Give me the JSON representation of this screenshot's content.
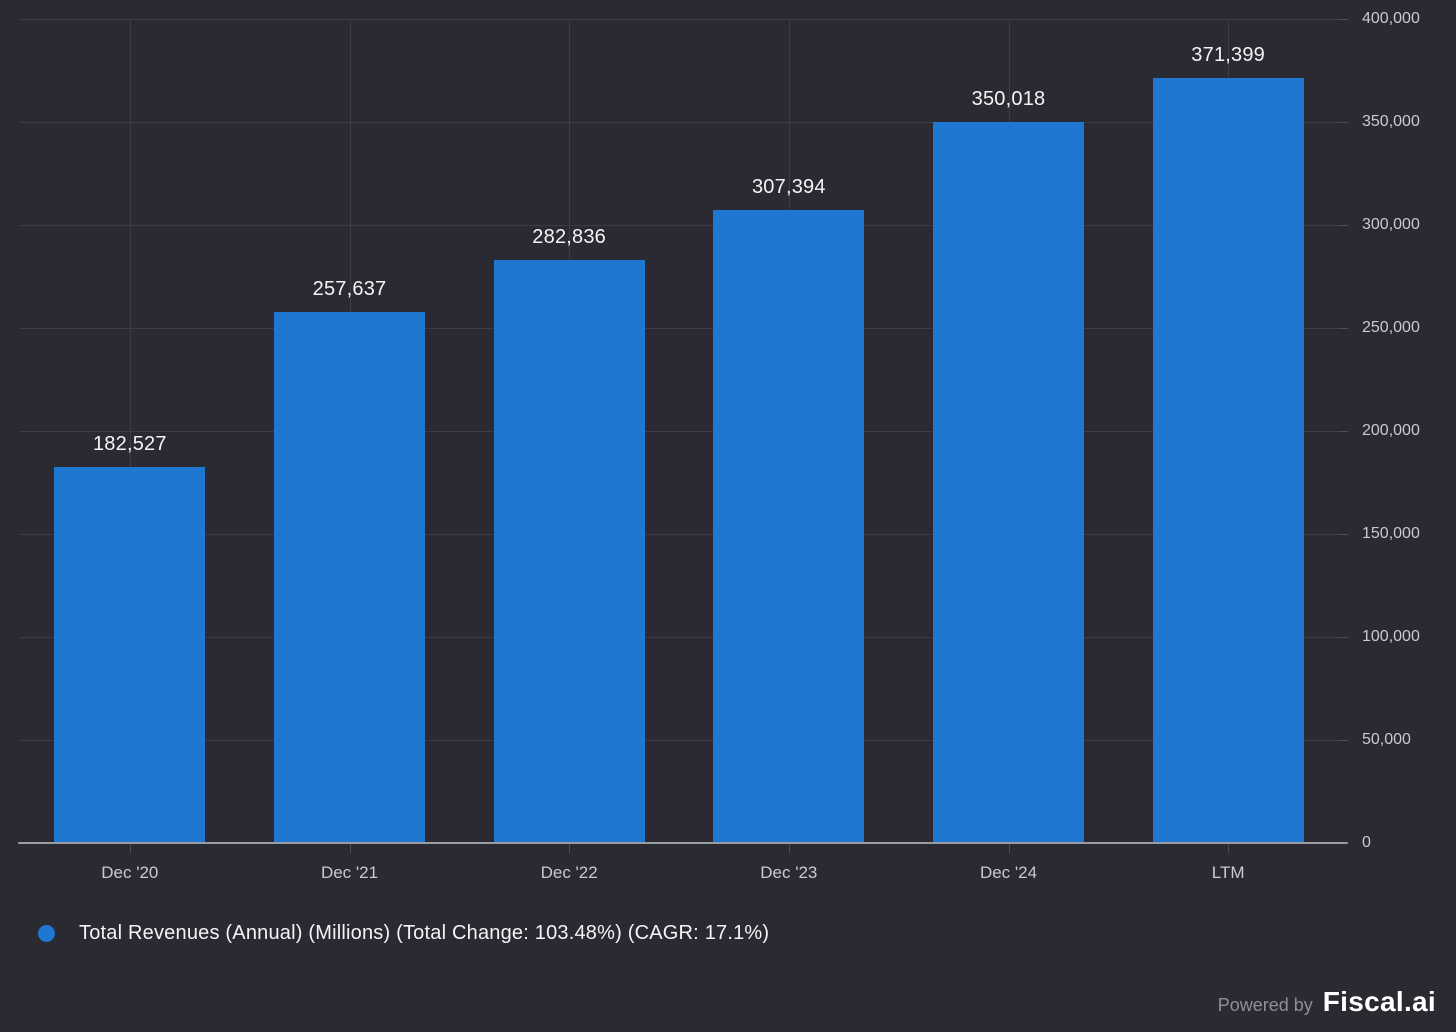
{
  "chart_data": {
    "type": "bar",
    "categories": [
      "Dec '20",
      "Dec '21",
      "Dec '22",
      "Dec '23",
      "Dec '24",
      "LTM"
    ],
    "values": [
      182527,
      257637,
      282836,
      307394,
      350018,
      371399
    ],
    "value_labels": [
      "182,527",
      "257,637",
      "282,836",
      "307,394",
      "350,018",
      "371,399"
    ],
    "title": "",
    "xlabel": "",
    "ylabel": "",
    "ylim": [
      0,
      400000
    ],
    "ytick_step": 50000,
    "ytick_labels": [
      "0",
      "50,000",
      "100,000",
      "150,000",
      "200,000",
      "250,000",
      "300,000",
      "350,000",
      "400,000"
    ],
    "grid": true,
    "y_axis_side": "right",
    "legend_position": "bottom-left"
  },
  "legend": {
    "label": "Total Revenues (Annual) (Millions) (Total Change: 103.48%) (CAGR: 17.1%)"
  },
  "footer": {
    "powered_by": "Powered by",
    "brand": "Fiscal.ai"
  },
  "colors": {
    "background": "#2a2a32",
    "bar": "#1e78d2",
    "grid": "#3c3c45",
    "tick": "#4c4c55",
    "axis": "#9b9ba3",
    "text_primary": "#f2f4f6",
    "text_secondary": "#c9cad1",
    "footer_muted": "#8e8f99"
  }
}
